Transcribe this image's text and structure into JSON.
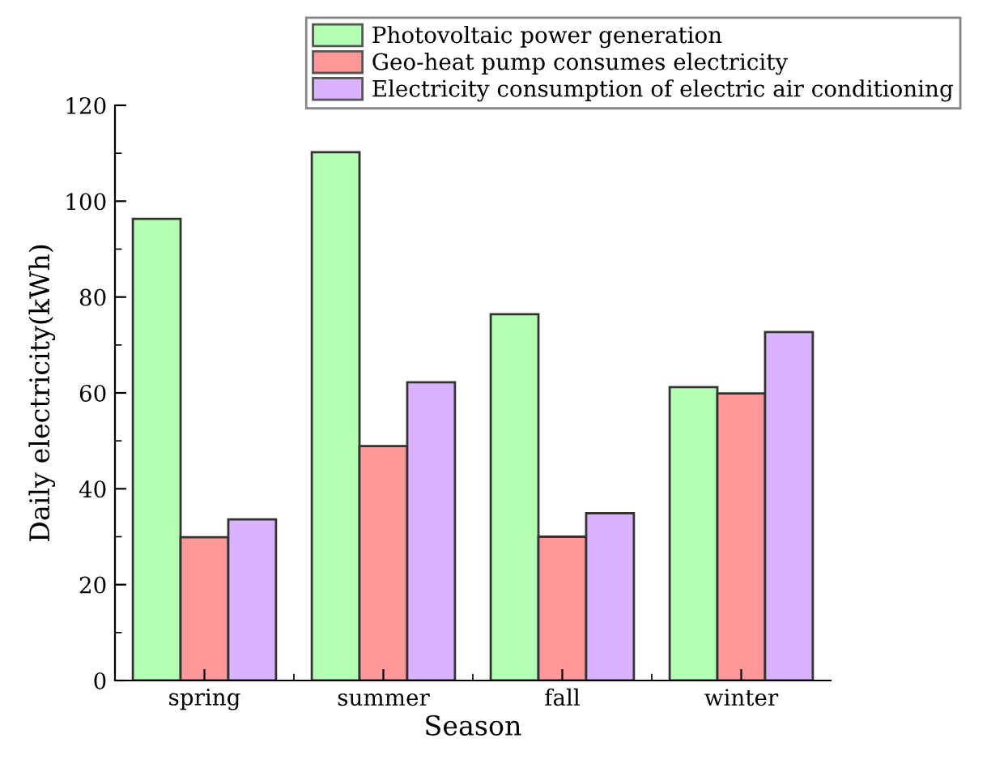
{
  "chart_data": {
    "type": "bar",
    "xlabel": "Season",
    "ylabel": "Daily electricity(kWh)",
    "categories": [
      "spring",
      "summer",
      "fall",
      "winter"
    ],
    "series": [
      {
        "name": "Photovoltaic power generation",
        "color": "#b3ffb3",
        "values": [
          96.3,
          110.2,
          76.4,
          61.2
        ]
      },
      {
        "name": "Geo-heat pump consumes electricity",
        "color": "#ff9999",
        "values": [
          29.9,
          48.9,
          30.0,
          59.9
        ]
      },
      {
        "name": "Electricity consumption of electric air conditioning",
        "color": "#d9b3ff",
        "values": [
          33.6,
          62.2,
          34.9,
          72.7
        ]
      }
    ],
    "ylim": [
      0,
      120
    ],
    "yticks": [
      0,
      20,
      40,
      60,
      80,
      100,
      120
    ],
    "grid": false,
    "legend": "top right"
  }
}
